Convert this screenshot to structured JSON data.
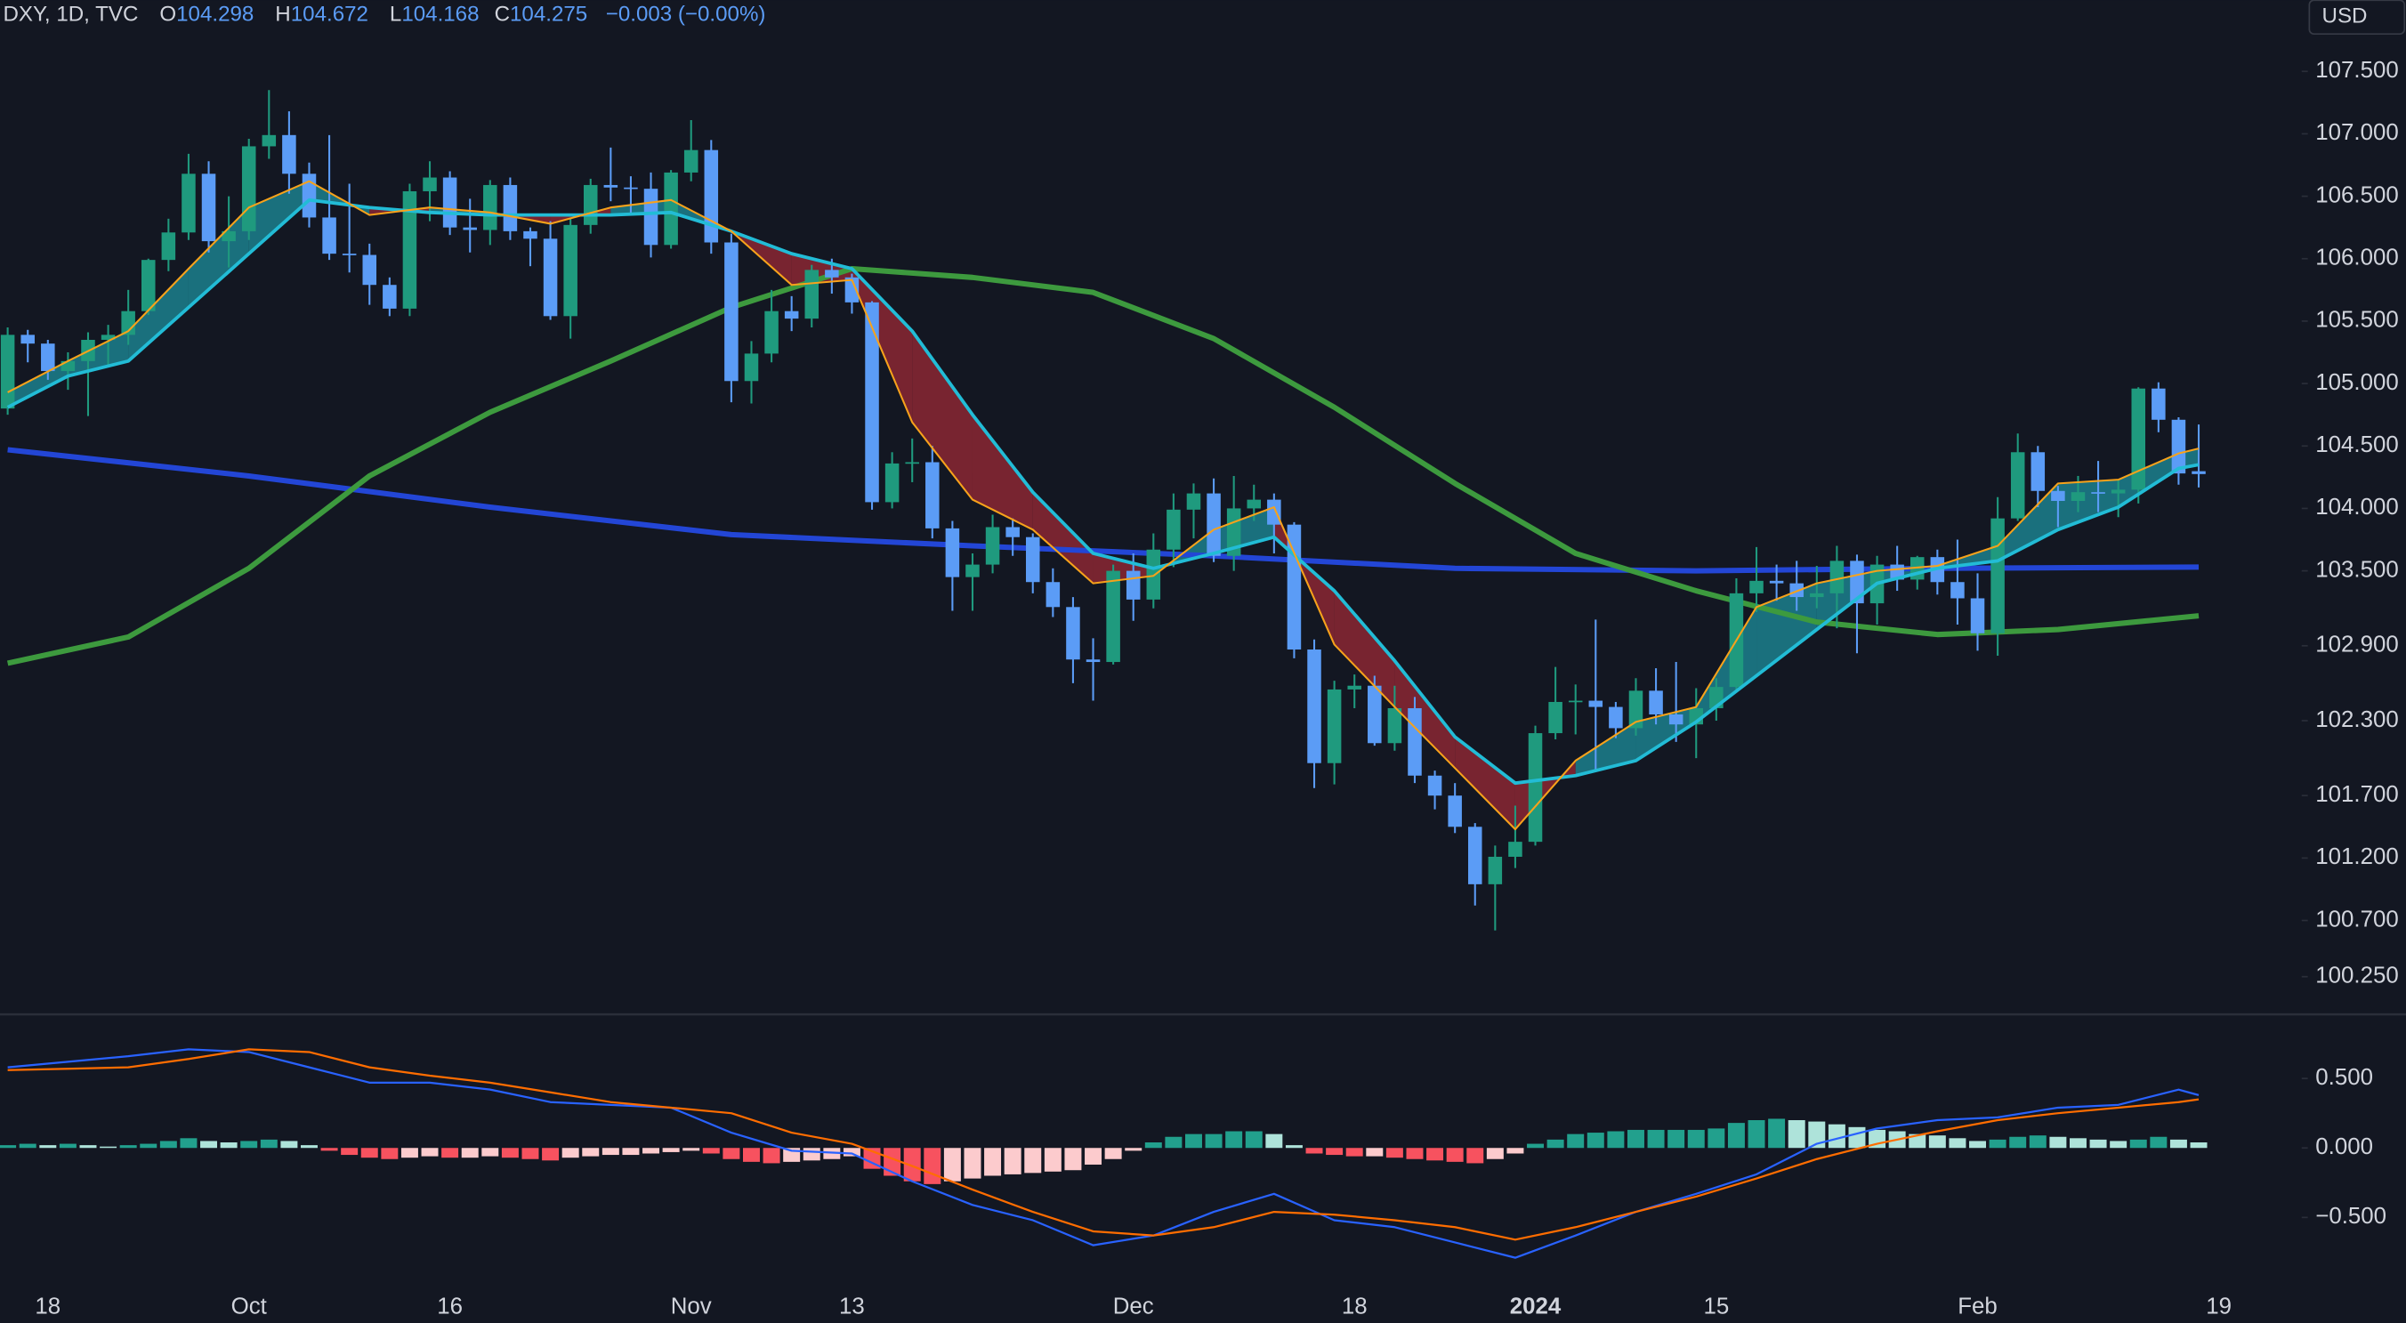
{
  "header": {
    "symbol": "DXY, 1D, TVC",
    "fields": [
      {
        "key": "O",
        "value": 104.298
      },
      {
        "key": "H",
        "value": 104.672
      },
      {
        "key": "L",
        "value": 104.168
      },
      {
        "key": "C",
        "value": 104.275
      }
    ],
    "change": "−0.003 (−0.00%)",
    "currency": "USD"
  },
  "chart_data": [
    {
      "type": "candlestick",
      "categories": [
        null,
        null,
        "18",
        null,
        null,
        null,
        null,
        null,
        null,
        null,
        null,
        null,
        "Oct",
        null,
        null,
        null,
        null,
        null,
        null,
        null,
        null,
        null,
        "16",
        null,
        null,
        null,
        null,
        null,
        null,
        null,
        null,
        null,
        null,
        null,
        "Nov",
        null,
        null,
        null,
        null,
        null,
        null,
        null,
        "13",
        null,
        null,
        null,
        null,
        null,
        null,
        null,
        null,
        null,
        null,
        null,
        null,
        null,
        "Dec",
        null,
        null,
        null,
        null,
        null,
        null,
        null,
        null,
        null,
        null,
        "18",
        null,
        null,
        null,
        null,
        null,
        null,
        null,
        null,
        "2024",
        null,
        null,
        null,
        null,
        null,
        null,
        null,
        null,
        "15",
        null,
        null,
        null,
        null,
        null,
        null,
        null,
        null,
        null,
        null,
        null,
        null,
        "Feb",
        null,
        null,
        null,
        null,
        null,
        null,
        null,
        null,
        null,
        null,
        null,
        "19"
      ],
      "open": [
        104.8,
        105.39,
        105.32,
        105.1,
        105.18,
        105.35,
        105.39,
        105.58,
        105.99,
        106.21,
        106.68,
        106.14,
        106.22,
        106.9,
        106.99,
        106.68,
        106.33,
        106.04,
        106.03,
        105.79,
        105.6,
        106.54,
        106.65,
        106.25,
        106.23,
        106.59,
        106.22,
        106.16,
        105.54,
        106.27,
        106.59,
        106.57,
        106.56,
        106.11,
        106.69,
        106.87,
        106.13,
        105.02,
        105.24,
        105.58,
        105.52,
        105.91,
        105.85,
        105.65,
        104.05,
        104.36,
        104.37,
        103.84,
        103.45,
        103.55,
        103.85,
        103.77,
        103.41,
        103.21,
        102.79,
        102.77,
        103.5,
        103.27,
        103.67,
        103.99,
        104.12,
        103.62,
        104.0,
        104.07,
        103.87,
        102.87,
        101.96,
        102.55,
        102.58,
        102.12,
        102.4,
        101.86,
        101.7,
        101.45,
        100.99,
        101.21,
        101.33,
        102.2,
        102.45,
        102.46,
        102.41,
        102.24,
        102.54,
        102.35,
        102.27,
        102.4,
        102.57,
        103.32,
        103.42,
        103.4,
        103.29,
        103.32,
        103.58,
        103.24,
        103.55,
        103.43,
        103.61,
        103.41,
        103.28,
        103.0,
        103.92,
        104.45,
        104.14,
        104.06,
        104.13,
        104.12,
        104.15,
        104.96,
        104.71,
        104.298,
        null
      ],
      "high": [
        105.45,
        105.43,
        105.35,
        105.25,
        105.41,
        105.47,
        105.75,
        106.0,
        106.32,
        106.84,
        106.78,
        106.5,
        106.96,
        107.35,
        107.18,
        106.77,
        106.99,
        106.6,
        106.12,
        105.85,
        106.6,
        106.78,
        106.7,
        106.48,
        106.63,
        106.65,
        106.25,
        106.3,
        106.33,
        106.64,
        106.89,
        106.66,
        106.69,
        106.71,
        107.11,
        106.95,
        106.2,
        105.34,
        105.75,
        105.7,
        105.95,
        106.0,
        105.88,
        105.66,
        104.45,
        104.56,
        104.5,
        103.9,
        103.64,
        103.95,
        103.92,
        103.8,
        103.52,
        103.29,
        102.96,
        103.55,
        103.64,
        103.8,
        104.12,
        104.2,
        104.24,
        104.26,
        104.19,
        104.12,
        103.89,
        102.95,
        102.62,
        102.67,
        102.66,
        102.58,
        102.49,
        101.9,
        101.8,
        101.48,
        101.3,
        101.62,
        102.26,
        102.73,
        102.59,
        103.11,
        102.45,
        102.64,
        102.72,
        102.77,
        102.56,
        102.64,
        103.44,
        103.69,
        103.55,
        103.58,
        103.54,
        103.7,
        103.63,
        103.62,
        103.7,
        103.62,
        103.67,
        103.75,
        103.48,
        104.09,
        104.6,
        104.5,
        104.18,
        104.26,
        104.38,
        104.23,
        104.97,
        105.01,
        104.73,
        104.672,
        null
      ],
      "low": [
        104.75,
        105.17,
        105.03,
        104.95,
        104.74,
        105.15,
        105.31,
        105.55,
        105.9,
        106.15,
        106.05,
        105.93,
        106.15,
        106.8,
        106.52,
        106.25,
        105.99,
        105.89,
        105.63,
        105.54,
        105.54,
        106.3,
        106.19,
        106.05,
        106.11,
        106.15,
        105.94,
        105.51,
        105.36,
        106.2,
        106.46,
        106.35,
        106.01,
        106.08,
        106.62,
        106.04,
        104.85,
        104.84,
        105.17,
        105.42,
        105.45,
        105.72,
        105.56,
        103.99,
        104.0,
        104.21,
        103.76,
        103.18,
        103.18,
        103.48,
        103.62,
        103.32,
        103.13,
        102.6,
        102.46,
        102.75,
        103.1,
        103.2,
        103.53,
        103.76,
        103.57,
        103.5,
        103.9,
        103.64,
        102.8,
        101.76,
        101.79,
        102.4,
        102.1,
        102.06,
        101.8,
        101.59,
        101.4,
        100.82,
        100.62,
        101.12,
        101.3,
        102.15,
        102.19,
        101.91,
        102.16,
        102.18,
        102.27,
        102.13,
        102.0,
        102.3,
        102.55,
        103.17,
        103.26,
        103.18,
        103.2,
        103.04,
        102.84,
        103.07,
        103.34,
        103.35,
        103.31,
        103.07,
        102.86,
        102.82,
        103.9,
        104.01,
        103.85,
        103.97,
        103.97,
        103.93,
        104.04,
        104.61,
        104.19,
        104.168,
        null
      ],
      "close": [
        105.39,
        105.32,
        105.1,
        105.18,
        105.35,
        105.39,
        105.58,
        105.99,
        106.21,
        106.68,
        106.14,
        106.22,
        106.9,
        106.99,
        106.68,
        106.33,
        106.04,
        106.03,
        105.79,
        105.6,
        106.54,
        106.65,
        106.25,
        106.23,
        106.59,
        106.22,
        106.16,
        105.54,
        106.27,
        106.59,
        106.57,
        106.56,
        106.11,
        106.69,
        106.87,
        106.13,
        105.02,
        105.24,
        105.58,
        105.52,
        105.91,
        105.85,
        105.65,
        104.05,
        104.36,
        104.37,
        103.84,
        103.45,
        103.55,
        103.85,
        103.77,
        103.41,
        103.21,
        102.79,
        102.77,
        103.5,
        103.27,
        103.67,
        103.99,
        104.12,
        103.62,
        104.0,
        104.07,
        103.87,
        102.87,
        101.96,
        102.55,
        102.58,
        102.12,
        102.4,
        101.86,
        101.7,
        101.45,
        100.99,
        101.21,
        101.33,
        102.2,
        102.45,
        102.46,
        102.41,
        102.24,
        102.54,
        102.35,
        102.27,
        102.4,
        102.57,
        103.32,
        103.42,
        103.4,
        103.29,
        103.32,
        103.58,
        103.24,
        103.55,
        103.43,
        103.61,
        103.41,
        103.28,
        103.0,
        103.92,
        104.45,
        104.14,
        104.06,
        104.13,
        104.12,
        104.15,
        104.96,
        104.71,
        104.28,
        104.275,
        null
      ],
      "up_color": "#1f9a7e",
      "down_color": "#5b9cf6",
      "series": [
        {
          "color": "#f7a21b",
          "width": 1.2,
          "x": [
            0,
            3,
            6,
            9,
            12,
            15,
            18,
            21,
            24,
            27,
            30,
            33,
            36,
            39,
            42,
            45,
            48,
            51,
            54,
            57,
            60,
            63,
            66,
            69,
            72,
            75,
            78,
            81,
            84,
            87,
            90,
            93,
            96,
            99,
            102,
            105,
            108,
            109
          ],
          "values": [
            104.93,
            105.18,
            105.42,
            105.92,
            106.41,
            106.62,
            106.35,
            106.41,
            106.37,
            106.28,
            106.41,
            106.47,
            106.22,
            105.79,
            105.83,
            104.69,
            104.07,
            103.83,
            103.4,
            103.46,
            103.83,
            104.01,
            102.91,
            102.41,
            101.92,
            101.43,
            101.98,
            102.29,
            102.41,
            103.21,
            103.4,
            103.5,
            103.54,
            103.7,
            104.2,
            104.23,
            104.44,
            104.48
          ]
        },
        {
          "color": "#22bcd6",
          "width": 2.2,
          "x": [
            0,
            3,
            6,
            9,
            12,
            15,
            18,
            21,
            24,
            27,
            30,
            33,
            36,
            39,
            42,
            45,
            48,
            51,
            54,
            57,
            60,
            63,
            66,
            69,
            72,
            75,
            78,
            81,
            84,
            87,
            90,
            93,
            96,
            99,
            102,
            105,
            108,
            109
          ],
          "values": [
            104.81,
            105.06,
            105.18,
            105.61,
            106.04,
            106.47,
            106.41,
            106.37,
            106.35,
            106.35,
            106.35,
            106.37,
            106.22,
            106.04,
            105.92,
            105.42,
            104.75,
            104.13,
            103.64,
            103.52,
            103.64,
            103.77,
            103.34,
            102.78,
            102.17,
            101.8,
            101.86,
            101.98,
            102.29,
            102.66,
            103.03,
            103.4,
            103.52,
            103.58,
            103.83,
            104.01,
            104.32,
            104.35
          ]
        },
        {
          "color": "#3d9a3e",
          "width": 3.5,
          "x": [
            0,
            6,
            12,
            18,
            24,
            30,
            36,
            42,
            48,
            54,
            60,
            66,
            72,
            78,
            84,
            90,
            96,
            102,
            109
          ],
          "values": [
            102.76,
            102.97,
            103.52,
            104.26,
            104.77,
            105.18,
            105.61,
            105.92,
            105.85,
            105.73,
            105.36,
            104.81,
            104.2,
            103.64,
            103.34,
            103.09,
            102.99,
            103.03,
            103.14
          ]
        },
        {
          "color": "#2346d6",
          "width": 3.5,
          "x": [
            0,
            12,
            24,
            36,
            48,
            60,
            72,
            84,
            96,
            109
          ],
          "values": [
            104.47,
            104.26,
            104.01,
            103.79,
            103.7,
            103.62,
            103.52,
            103.5,
            103.52,
            103.53
          ]
        }
      ],
      "cloud_up": "#1e8f9c",
      "cloud_down": "#9b2a36",
      "ylim": [
        99.96,
        108.07
      ],
      "yticks": [
        {
          "value": 107.5,
          "label": "107.500"
        },
        {
          "value": 107,
          "label": "107.000"
        },
        {
          "value": 106.5,
          "label": "106.500"
        },
        {
          "value": 106,
          "label": "106.000"
        },
        {
          "value": 105.5,
          "label": "105.500"
        },
        {
          "value": 105,
          "label": "105.000"
        },
        {
          "value": 104.5,
          "label": "104.500"
        },
        {
          "value": 104,
          "label": "104.000"
        },
        {
          "value": 103.5,
          "label": "103.500"
        },
        {
          "value": 102.9,
          "label": "102.900"
        },
        {
          "value": 102.3,
          "label": "102.300"
        },
        {
          "value": 101.7,
          "label": "101.700"
        },
        {
          "value": 101.2,
          "label": "101.200"
        },
        {
          "value": 100.7,
          "label": "100.700"
        },
        {
          "value": 100.25,
          "label": "100.250"
        }
      ]
    },
    {
      "type": "macd",
      "histogram": [
        0.02,
        0.03,
        0.02,
        0.03,
        0.02,
        0.01,
        0.02,
        0.03,
        0.05,
        0.07,
        0.05,
        0.04,
        0.05,
        0.06,
        0.05,
        0.02,
        -0.02,
        -0.05,
        -0.07,
        -0.08,
        -0.07,
        -0.06,
        -0.07,
        -0.07,
        -0.06,
        -0.07,
        -0.08,
        -0.09,
        -0.07,
        -0.06,
        -0.05,
        -0.05,
        -0.04,
        -0.03,
        -0.02,
        -0.04,
        -0.08,
        -0.1,
        -0.11,
        -0.1,
        -0.09,
        -0.08,
        -0.06,
        -0.15,
        -0.2,
        -0.24,
        -0.26,
        -0.24,
        -0.22,
        -0.2,
        -0.19,
        -0.18,
        -0.17,
        -0.16,
        -0.12,
        -0.08,
        -0.02,
        0.04,
        0.08,
        0.1,
        0.1,
        0.12,
        0.12,
        0.1,
        0.02,
        -0.04,
        -0.05,
        -0.06,
        -0.06,
        -0.07,
        -0.08,
        -0.09,
        -0.1,
        -0.11,
        -0.08,
        -0.04,
        0.03,
        0.06,
        0.1,
        0.11,
        0.12,
        0.13,
        0.13,
        0.13,
        0.13,
        0.14,
        0.18,
        0.2,
        0.21,
        0.2,
        0.19,
        0.17,
        0.15,
        0.13,
        0.12,
        0.1,
        0.09,
        0.07,
        0.05,
        0.06,
        0.08,
        0.09,
        0.08,
        0.07,
        0.06,
        0.05,
        0.06,
        0.08,
        0.06,
        0.04,
        null
      ],
      "hist_colors": {
        "pos_up": "#22a08d",
        "pos_down": "#aee3da",
        "neg_down": "#f7525f",
        "neg_up": "#fccbcd"
      },
      "series": [
        {
          "color": "#2962ff",
          "width": 1.3,
          "x": [
            0,
            3,
            6,
            9,
            12,
            15,
            18,
            21,
            24,
            27,
            30,
            33,
            36,
            39,
            42,
            45,
            48,
            51,
            54,
            57,
            60,
            63,
            66,
            69,
            72,
            75,
            78,
            81,
            84,
            87,
            90,
            93,
            96,
            99,
            102,
            105,
            108,
            109
          ],
          "values": [
            0.58,
            0.62,
            0.66,
            0.71,
            0.69,
            0.58,
            0.47,
            0.47,
            0.42,
            0.33,
            0.31,
            0.29,
            0.11,
            -0.02,
            -0.04,
            -0.24,
            -0.41,
            -0.52,
            -0.7,
            -0.63,
            -0.46,
            -0.33,
            -0.52,
            -0.57,
            -0.68,
            -0.79,
            -0.63,
            -0.46,
            -0.33,
            -0.19,
            0.03,
            0.14,
            0.2,
            0.22,
            0.29,
            0.31,
            0.42,
            0.38
          ]
        },
        {
          "color": "#ff6d00",
          "width": 1.3,
          "x": [
            0,
            3,
            6,
            9,
            12,
            15,
            18,
            21,
            24,
            27,
            30,
            33,
            36,
            39,
            42,
            45,
            48,
            51,
            54,
            57,
            60,
            63,
            66,
            69,
            72,
            75,
            78,
            81,
            84,
            87,
            90,
            93,
            96,
            99,
            102,
            105,
            108,
            109
          ],
          "values": [
            0.56,
            0.57,
            0.58,
            0.64,
            0.71,
            0.69,
            0.58,
            0.52,
            0.47,
            0.4,
            0.33,
            0.29,
            0.25,
            0.11,
            0.03,
            -0.13,
            -0.3,
            -0.46,
            -0.6,
            -0.63,
            -0.57,
            -0.46,
            -0.48,
            -0.52,
            -0.57,
            -0.66,
            -0.57,
            -0.46,
            -0.35,
            -0.22,
            -0.08,
            0.03,
            0.12,
            0.2,
            0.25,
            0.29,
            0.33,
            0.35
          ]
        }
      ],
      "ylim": [
        -0.96,
        0.95
      ],
      "yticks": [
        {
          "value": 0.5,
          "label": "0.500"
        },
        {
          "value": 0,
          "label": "0.000"
        },
        {
          "value": -0.5,
          "label": "−0.500"
        }
      ]
    }
  ]
}
